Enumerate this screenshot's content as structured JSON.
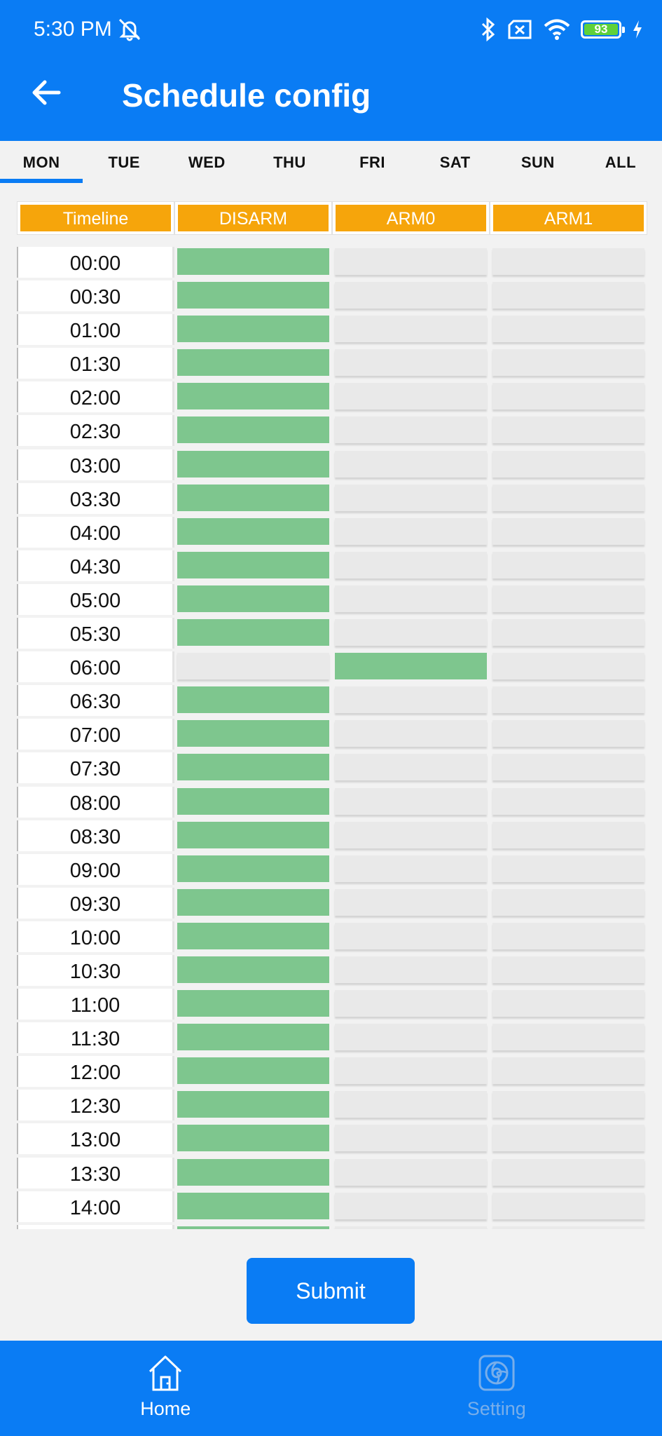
{
  "status_bar": {
    "time": "5:30 PM",
    "battery": "93",
    "battery_level": 0.93,
    "icons": [
      "mute-bell-icon",
      "bluetooth-icon",
      "no-sim-icon",
      "wifi-icon",
      "battery-icon",
      "charging-icon"
    ]
  },
  "header": {
    "title": "Schedule config"
  },
  "tabs": [
    {
      "label": "MON",
      "active": true
    },
    {
      "label": "TUE",
      "active": false
    },
    {
      "label": "WED",
      "active": false
    },
    {
      "label": "THU",
      "active": false
    },
    {
      "label": "FRI",
      "active": false
    },
    {
      "label": "SAT",
      "active": false
    },
    {
      "label": "SUN",
      "active": false
    },
    {
      "label": "ALL",
      "active": false
    }
  ],
  "columns": [
    "Timeline",
    "DISARM",
    "ARM0",
    "ARM1"
  ],
  "schedule": [
    {
      "time": "00:00",
      "mode": "DISARM"
    },
    {
      "time": "00:30",
      "mode": "DISARM"
    },
    {
      "time": "01:00",
      "mode": "DISARM"
    },
    {
      "time": "01:30",
      "mode": "DISARM"
    },
    {
      "time": "02:00",
      "mode": "DISARM"
    },
    {
      "time": "02:30",
      "mode": "DISARM"
    },
    {
      "time": "03:00",
      "mode": "DISARM"
    },
    {
      "time": "03:30",
      "mode": "DISARM"
    },
    {
      "time": "04:00",
      "mode": "DISARM"
    },
    {
      "time": "04:30",
      "mode": "DISARM"
    },
    {
      "time": "05:00",
      "mode": "DISARM"
    },
    {
      "time": "05:30",
      "mode": "DISARM"
    },
    {
      "time": "06:00",
      "mode": "ARM0"
    },
    {
      "time": "06:30",
      "mode": "DISARM"
    },
    {
      "time": "07:00",
      "mode": "DISARM"
    },
    {
      "time": "07:30",
      "mode": "DISARM"
    },
    {
      "time": "08:00",
      "mode": "DISARM"
    },
    {
      "time": "08:30",
      "mode": "DISARM"
    },
    {
      "time": "09:00",
      "mode": "DISARM"
    },
    {
      "time": "09:30",
      "mode": "DISARM"
    },
    {
      "time": "10:00",
      "mode": "DISARM"
    },
    {
      "time": "10:30",
      "mode": "DISARM"
    },
    {
      "time": "11:00",
      "mode": "DISARM"
    },
    {
      "time": "11:30",
      "mode": "DISARM"
    },
    {
      "time": "12:00",
      "mode": "DISARM"
    },
    {
      "time": "12:30",
      "mode": "DISARM"
    },
    {
      "time": "13:00",
      "mode": "DISARM"
    },
    {
      "time": "13:30",
      "mode": "DISARM"
    },
    {
      "time": "14:00",
      "mode": "DISARM"
    },
    {
      "time": "",
      "mode": "DISARM"
    }
  ],
  "colors": {
    "primary": "#0a7cf4",
    "header_orange": "#f6a50b",
    "selected_green": "#7ec68e",
    "empty_slot": "#e9e9e9"
  },
  "submit_label": "Submit",
  "bottom_nav": [
    {
      "label": "Home",
      "icon": "home-icon",
      "active": true
    },
    {
      "label": "Setting",
      "icon": "setting-icon",
      "active": false
    }
  ]
}
